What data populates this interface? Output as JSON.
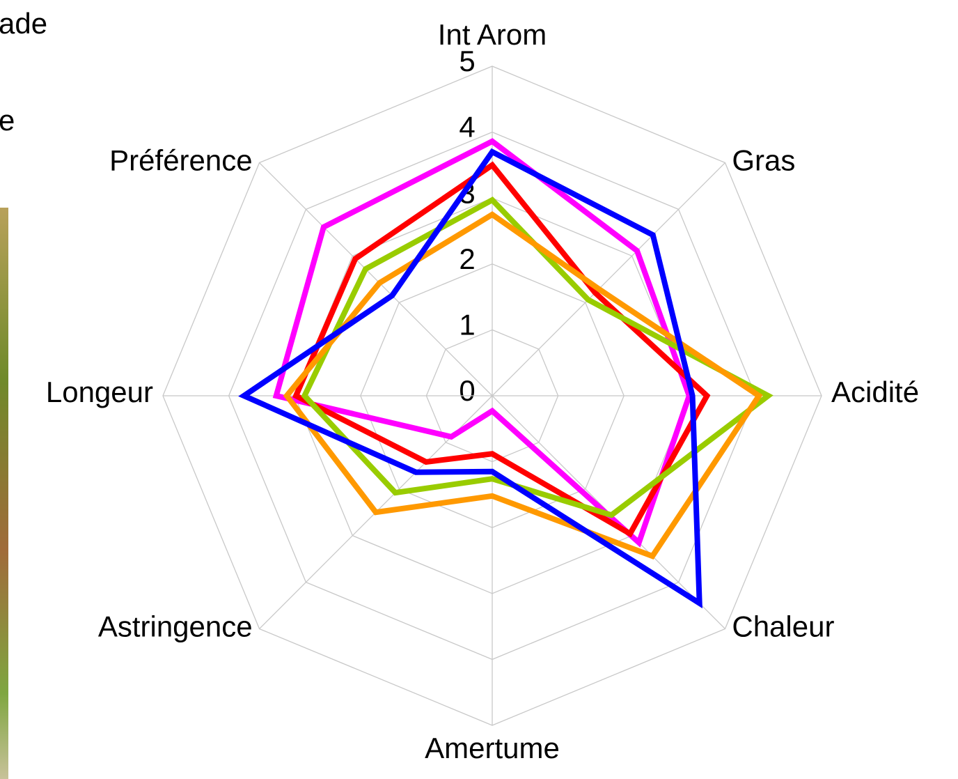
{
  "chart_data": {
    "type": "radar",
    "fragments": [
      "ade",
      "e"
    ],
    "categories": [
      "Int Arom",
      "Gras",
      "Acidité",
      "Chaleur",
      "Amertume",
      "Astringence",
      "Longeur",
      "Préférence"
    ],
    "series": [
      {
        "color": "#ff00ff",
        "values": [
          3.86,
          3.11,
          2.99,
          3.15,
          0.23,
          0.88,
          3.28,
          3.62
        ]
      },
      {
        "color": "#ff0000",
        "values": [
          3.5,
          2.21,
          3.26,
          2.96,
          0.88,
          1.42,
          2.98,
          2.94
        ]
      },
      {
        "color": "#99cc00",
        "values": [
          2.97,
          2.06,
          4.19,
          2.56,
          1.26,
          2.08,
          2.85,
          2.72
        ]
      },
      {
        "color": "#ff9900",
        "values": [
          2.75,
          2.29,
          4.05,
          3.44,
          1.52,
          2.5,
          3.12,
          2.42
        ]
      },
      {
        "color": "#0000ff",
        "values": [
          3.7,
          3.45,
          3.04,
          4.45,
          1.15,
          1.64,
          3.77,
          2.15
        ]
      }
    ],
    "ylim": [
      0,
      5
    ],
    "yticks": [
      0,
      1,
      2,
      3,
      4,
      5
    ],
    "grid": true
  }
}
